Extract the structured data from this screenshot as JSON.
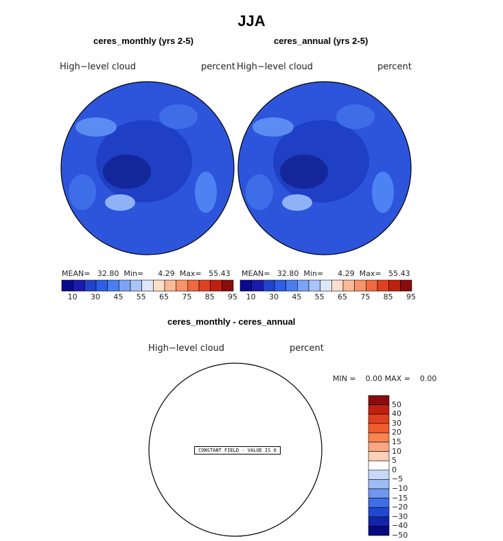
{
  "title": "JJA",
  "panels": [
    {
      "subtitle": "ceres_monthly (yrs 2-5)",
      "variable": "High−level  cloud",
      "units": "percent",
      "stats": {
        "mean_label": "MEAN=",
        "mean": "32.80",
        "min_label": "Min=",
        "min": "4.29",
        "max_label": "Max=",
        "max": "55.43"
      },
      "colorbar_labels": [
        "10",
        "30",
        "45",
        "55",
        "65",
        "75",
        "85",
        "95"
      ]
    },
    {
      "subtitle": "ceres_annual (yrs 2-5)",
      "variable": "High−level  cloud",
      "units": "percent",
      "stats": {
        "mean_label": "MEAN=",
        "mean": "32.80",
        "min_label": "Min=",
        "min": "4.29",
        "max_label": "Max=",
        "max": "55.43"
      },
      "colorbar_labels": [
        "10",
        "30",
        "45",
        "55",
        "65",
        "75",
        "85",
        "95"
      ]
    }
  ],
  "diff_panel": {
    "subtitle": "ceres_monthly - ceres_annual",
    "variable": "High−level  cloud",
    "units": "percent",
    "stats_text": "MIN =    0.00 MAX =    0.00",
    "note": "CONSTANT FIELD - VALUE IS 0",
    "colorbar_labels": [
      "50",
      "40",
      "30",
      "20",
      "15",
      "10",
      "5",
      "0",
      "−5",
      "−10",
      "−15",
      "−20",
      "−30",
      "−40",
      "−50"
    ]
  },
  "colors": {
    "abs_scale": [
      "#0a0a8c",
      "#1a1aad",
      "#2244cc",
      "#2e5fe8",
      "#4a7df0",
      "#7aa4f5",
      "#a8c4f8",
      "#dde8fb",
      "#fde0cc",
      "#fbb996",
      "#f8936a",
      "#f06a40",
      "#e04020",
      "#c02010",
      "#8a0c0c"
    ],
    "diff_scale": [
      "#8a0c0c",
      "#c02010",
      "#e04020",
      "#f25a2c",
      "#f8844e",
      "#fba882",
      "#fdd0b8",
      "#ffffff",
      "#c8d8f8",
      "#a0bcf5",
      "#6f96f0",
      "#3f6ee6",
      "#2048d0",
      "#1424a8",
      "#0a0a80"
    ],
    "map_base": "#2d55dc",
    "map_dark": "#1a2fb0",
    "map_light": "#4d82f2"
  }
}
